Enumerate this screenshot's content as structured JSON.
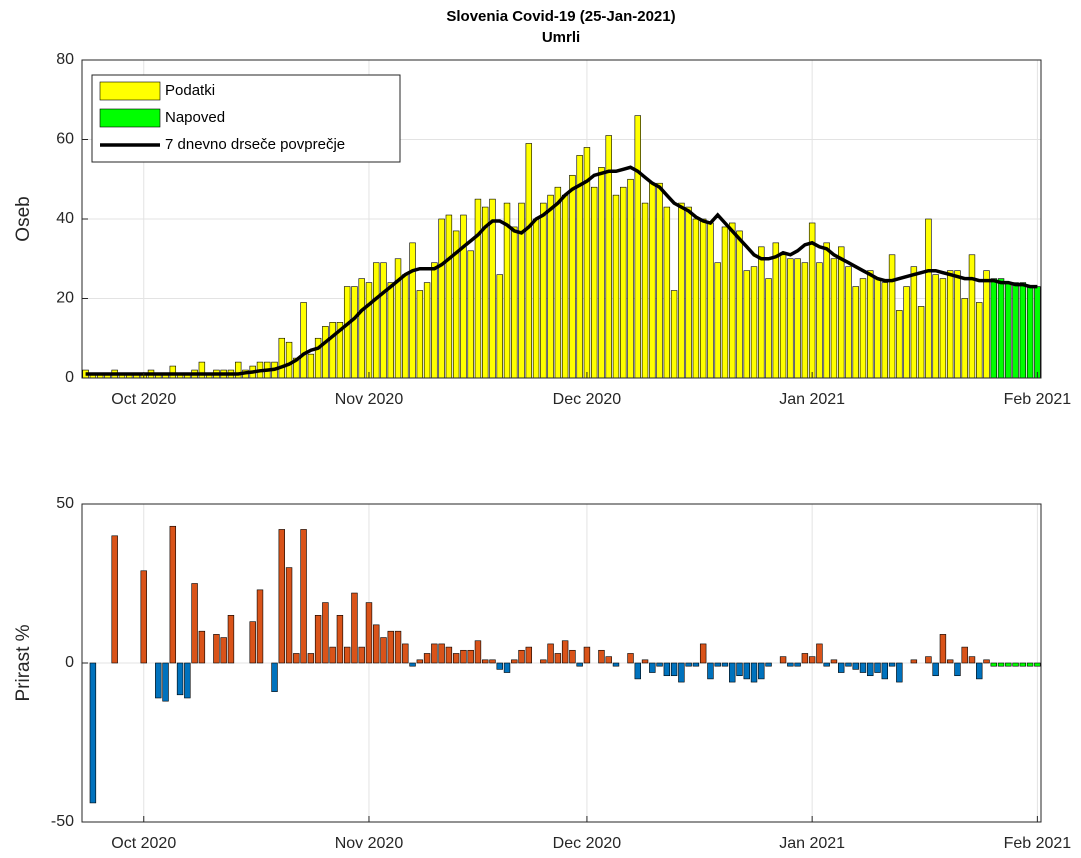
{
  "chart_data": [
    {
      "type": "bar",
      "title": "Slovenia Covid-19 (25-Jan-2021)",
      "subtitle": "Umrli",
      "ylabel": "Oseb",
      "categories": [
        null,
        null,
        null,
        null,
        null,
        null,
        null,
        null,
        "Oct 2020",
        null,
        null,
        null,
        null,
        null,
        null,
        null,
        null,
        null,
        null,
        null,
        null,
        null,
        null,
        null,
        null,
        null,
        null,
        null,
        null,
        null,
        null,
        null,
        null,
        null,
        null,
        null,
        null,
        null,
        null,
        "Nov 2020",
        null,
        null,
        null,
        null,
        null,
        null,
        null,
        null,
        null,
        null,
        null,
        null,
        null,
        null,
        null,
        null,
        null,
        null,
        null,
        null,
        null,
        null,
        null,
        null,
        null,
        null,
        null,
        null,
        null,
        "Dec 2020",
        null,
        null,
        null,
        null,
        null,
        null,
        null,
        null,
        null,
        null,
        null,
        null,
        null,
        null,
        null,
        null,
        null,
        null,
        null,
        null,
        null,
        null,
        null,
        null,
        null,
        null,
        null,
        null,
        null,
        null,
        "Jan 2021",
        null,
        null,
        null,
        null,
        null,
        null,
        null,
        null,
        null,
        null,
        null,
        null,
        null,
        null,
        null,
        null,
        null,
        null,
        null,
        null,
        null,
        null,
        null,
        null,
        null,
        null,
        null,
        null,
        null,
        null,
        "Feb 2021"
      ],
      "series": [
        {
          "name": "Podatki",
          "color": "#ffff00",
          "values": [
            2,
            1,
            1,
            1,
            2,
            1,
            1,
            1,
            1,
            2,
            1,
            1,
            3,
            1,
            1,
            2,
            4,
            1,
            2,
            2,
            2,
            4,
            2,
            3,
            4,
            4,
            4,
            10,
            9,
            5,
            19,
            6,
            10,
            13,
            14,
            14,
            23,
            23,
            25,
            24,
            29,
            29,
            24,
            30,
            26,
            34,
            22,
            24,
            29,
            40,
            41,
            37,
            41,
            32,
            45,
            43,
            45,
            26,
            44,
            38,
            44,
            59,
            40,
            44,
            46,
            48,
            46,
            51,
            56,
            58,
            48,
            53,
            61,
            46,
            48,
            50,
            66,
            44,
            49,
            49,
            43,
            22,
            44,
            43,
            40,
            40,
            39,
            29,
            38,
            39,
            37,
            27,
            28,
            33,
            25,
            34,
            31,
            30,
            30,
            29,
            39,
            29,
            34,
            30,
            33,
            28,
            23,
            25,
            27,
            25,
            24,
            31,
            17,
            23,
            28,
            18,
            40,
            26,
            25,
            27,
            27,
            20,
            31,
            19,
            27,
            null,
            null,
            null,
            null,
            null,
            null,
            null
          ]
        },
        {
          "name": "Napoved",
          "color": "#00ff00",
          "values": [
            null,
            null,
            null,
            null,
            null,
            null,
            null,
            null,
            null,
            null,
            null,
            null,
            null,
            null,
            null,
            null,
            null,
            null,
            null,
            null,
            null,
            null,
            null,
            null,
            null,
            null,
            null,
            null,
            null,
            null,
            null,
            null,
            null,
            null,
            null,
            null,
            null,
            null,
            null,
            null,
            null,
            null,
            null,
            null,
            null,
            null,
            null,
            null,
            null,
            null,
            null,
            null,
            null,
            null,
            null,
            null,
            null,
            null,
            null,
            null,
            null,
            null,
            null,
            null,
            null,
            null,
            null,
            null,
            null,
            null,
            null,
            null,
            null,
            null,
            null,
            null,
            null,
            null,
            null,
            null,
            null,
            null,
            null,
            null,
            null,
            null,
            null,
            null,
            null,
            null,
            null,
            null,
            null,
            null,
            null,
            null,
            null,
            null,
            null,
            null,
            null,
            null,
            null,
            null,
            null,
            null,
            null,
            null,
            null,
            null,
            null,
            null,
            null,
            null,
            null,
            null,
            null,
            null,
            null,
            null,
            null,
            null,
            null,
            null,
            null,
            25,
            25,
            24,
            24,
            24,
            23,
            23
          ]
        },
        {
          "name": "7 dnevno drseče povprečje",
          "type": "line",
          "color": "#000000",
          "values": [
            1,
            1,
            1,
            1,
            1,
            1,
            1,
            1,
            1,
            1,
            1,
            1,
            1,
            1,
            1,
            1,
            1,
            1,
            1,
            1,
            1,
            1,
            1.3,
            1.5,
            1.8,
            2,
            2.2,
            2.8,
            3.5,
            4.5,
            6,
            7,
            7.5,
            9,
            10.5,
            12,
            13.5,
            15,
            17,
            18.5,
            20,
            21.5,
            23,
            24.5,
            26,
            27,
            27.5,
            27.5,
            27.5,
            28.5,
            30,
            31.5,
            33,
            34.5,
            36,
            38,
            39.5,
            39.5,
            38.5,
            37,
            36.5,
            38,
            40,
            41,
            42.5,
            44,
            46,
            47.5,
            48.5,
            49.5,
            51,
            51.5,
            52,
            52,
            52.5,
            53,
            52,
            50.5,
            49,
            48,
            46,
            44,
            43,
            42,
            40.5,
            39.5,
            39,
            41,
            39,
            37,
            35,
            33,
            31,
            30,
            30,
            30.5,
            31.5,
            31,
            32,
            33.5,
            34,
            33,
            32.5,
            31,
            30,
            29,
            28,
            27,
            26,
            25,
            24.5,
            24.5,
            25,
            25.5,
            26,
            26.5,
            27,
            27,
            26.5,
            26,
            25.5,
            25,
            25,
            24.5,
            24.5,
            24.5,
            24,
            24,
            23.5,
            23.5,
            23,
            23
          ]
        }
      ],
      "ylim": [
        0,
        80
      ],
      "yticks": [
        0,
        20,
        40,
        60,
        80
      ],
      "grid": true,
      "legend": "northwest"
    },
    {
      "type": "bar",
      "ylabel": "Prirast %",
      "categories": [
        null,
        null,
        null,
        null,
        null,
        null,
        null,
        null,
        "Oct 2020",
        null,
        null,
        null,
        null,
        null,
        null,
        null,
        null,
        null,
        null,
        null,
        null,
        null,
        null,
        null,
        null,
        null,
        null,
        null,
        null,
        null,
        null,
        null,
        null,
        null,
        null,
        null,
        null,
        null,
        null,
        "Nov 2020",
        null,
        null,
        null,
        null,
        null,
        null,
        null,
        null,
        null,
        null,
        null,
        null,
        null,
        null,
        null,
        null,
        null,
        null,
        null,
        null,
        null,
        null,
        null,
        null,
        null,
        null,
        null,
        null,
        null,
        "Dec 2020",
        null,
        null,
        null,
        null,
        null,
        null,
        null,
        null,
        null,
        null,
        null,
        null,
        null,
        null,
        null,
        null,
        null,
        null,
        null,
        null,
        null,
        null,
        null,
        null,
        null,
        null,
        null,
        null,
        null,
        null,
        "Jan 2021",
        null,
        null,
        null,
        null,
        null,
        null,
        null,
        null,
        null,
        null,
        null,
        null,
        null,
        null,
        null,
        null,
        null,
        null,
        null,
        null,
        null,
        null,
        null,
        null,
        null,
        null,
        null,
        null,
        null,
        null,
        "Feb 2021"
      ],
      "series": [
        {
          "color": "#d95319",
          "negative_color": "#0072bd",
          "values": [
            null,
            -44,
            0,
            0,
            40,
            0,
            0,
            0,
            29,
            0,
            -11,
            -12,
            43,
            -10,
            -11,
            25,
            10,
            0,
            9,
            8,
            15,
            0,
            0,
            13,
            23,
            0,
            -9,
            42,
            30,
            3,
            42,
            3,
            15,
            19,
            5,
            15,
            5,
            22,
            5,
            19,
            12,
            8,
            10,
            10,
            6,
            -1,
            1,
            3,
            6,
            6,
            5,
            3,
            4,
            4,
            7,
            1,
            1,
            -2,
            -3,
            1,
            4,
            5,
            0,
            1,
            6,
            3,
            7,
            4,
            -1,
            5,
            0,
            4,
            2,
            -1,
            0,
            3,
            -5,
            1,
            -3,
            -1,
            -4,
            -4,
            -6,
            -1,
            -1,
            6,
            -5,
            -1,
            -1,
            -6,
            -4,
            -5,
            -6,
            -5,
            -1,
            0,
            2,
            -1,
            -1,
            3,
            2,
            6,
            -1,
            1,
            -3,
            -1,
            -2,
            -3,
            -4,
            -3,
            -5,
            -1,
            -6,
            0,
            1,
            0,
            2,
            -4,
            9,
            1,
            -4,
            5,
            2,
            -5,
            1,
            null,
            null,
            null,
            null,
            null,
            null,
            null
          ]
        },
        {
          "color": "#00ff00",
          "values": [
            null,
            null,
            null,
            null,
            null,
            null,
            null,
            null,
            null,
            null,
            null,
            null,
            null,
            null,
            null,
            null,
            null,
            null,
            null,
            null,
            null,
            null,
            null,
            null,
            null,
            null,
            null,
            null,
            null,
            null,
            null,
            null,
            null,
            null,
            null,
            null,
            null,
            null,
            null,
            null,
            null,
            null,
            null,
            null,
            null,
            null,
            null,
            null,
            null,
            null,
            null,
            null,
            null,
            null,
            null,
            null,
            null,
            null,
            null,
            null,
            null,
            null,
            null,
            null,
            null,
            null,
            null,
            null,
            null,
            null,
            null,
            null,
            null,
            null,
            null,
            null,
            null,
            null,
            null,
            null,
            null,
            null,
            null,
            null,
            null,
            null,
            null,
            null,
            null,
            null,
            null,
            null,
            null,
            null,
            null,
            null,
            null,
            null,
            null,
            null,
            null,
            null,
            null,
            null,
            null,
            null,
            null,
            null,
            null,
            null,
            null,
            null,
            null,
            null,
            null,
            null,
            null,
            null,
            null,
            null,
            null,
            null,
            null,
            null,
            null,
            -1,
            -1,
            -1,
            -1,
            -1,
            -1,
            -1
          ]
        }
      ],
      "ylim": [
        -50,
        50
      ],
      "yticks": [
        -50,
        0,
        50
      ],
      "grid": true
    }
  ]
}
